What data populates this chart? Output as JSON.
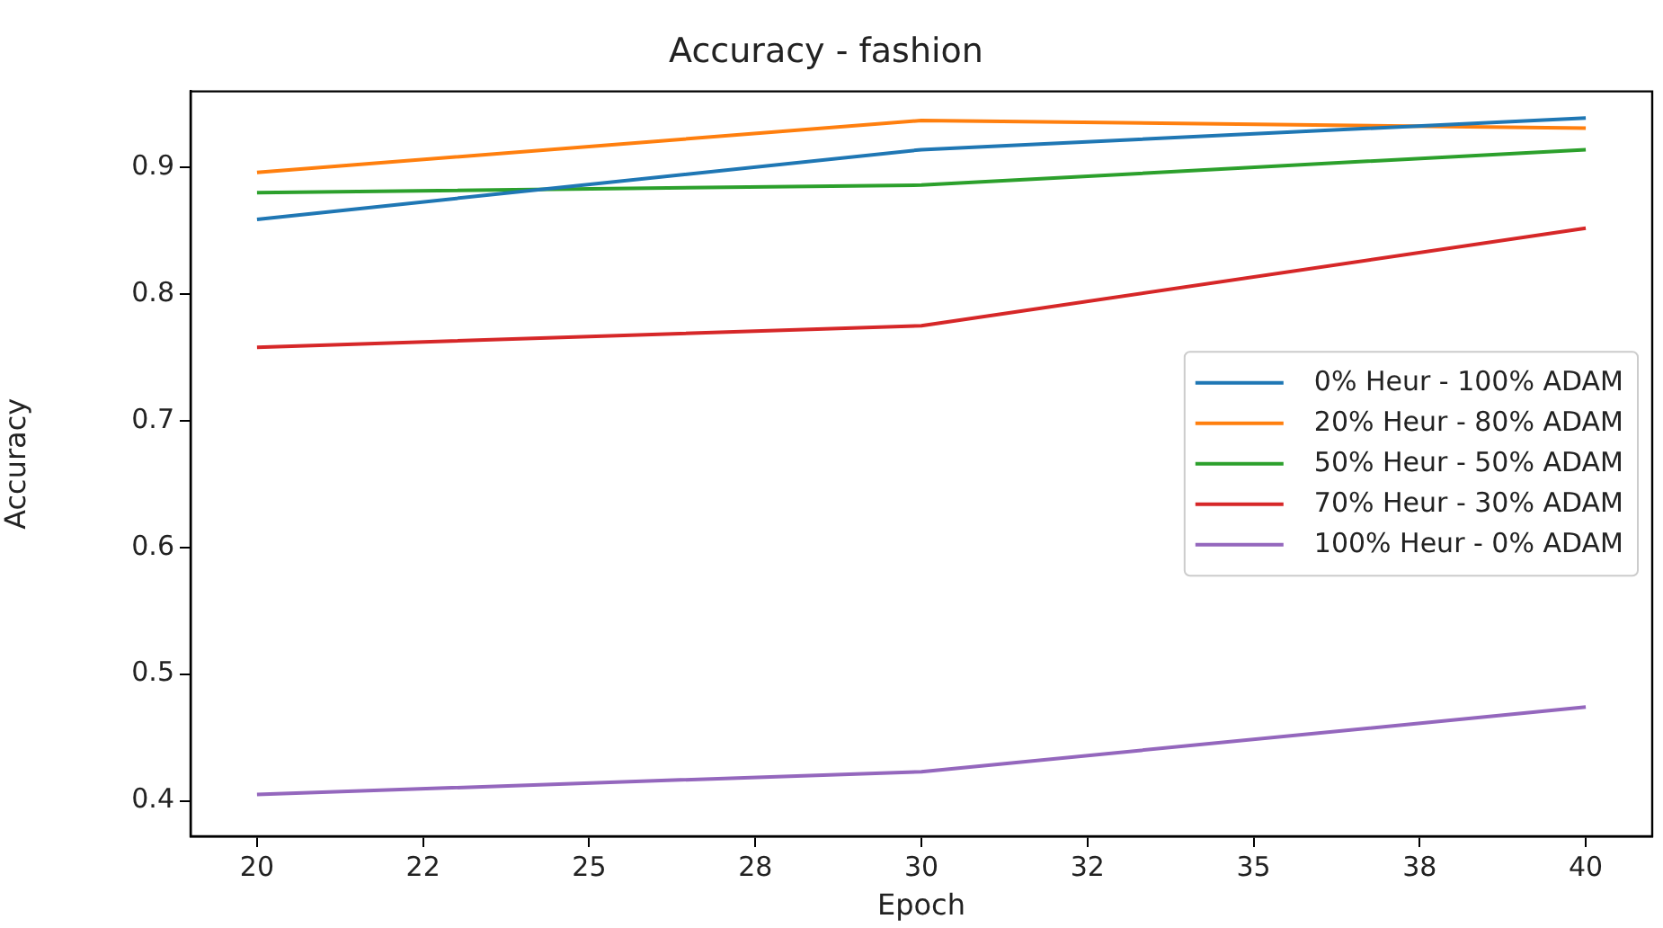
{
  "chart_data": {
    "type": "line",
    "title": "Accuracy - fashion",
    "xlabel": "Epoch",
    "ylabel": "Accuracy",
    "x": [
      20,
      30,
      40
    ],
    "series": [
      {
        "name": "0% Heur - 100% ADAM",
        "color": "#1f77b4",
        "values": [
          0.859,
          0.914,
          0.939
        ]
      },
      {
        "name": "20% Heur - 80% ADAM",
        "color": "#ff7f0e",
        "values": [
          0.896,
          0.937,
          0.931
        ]
      },
      {
        "name": "50% Heur - 50% ADAM",
        "color": "#2ca02c",
        "values": [
          0.88,
          0.886,
          0.914
        ]
      },
      {
        "name": "70% Heur - 30% ADAM",
        "color": "#d62728",
        "values": [
          0.758,
          0.775,
          0.852
        ]
      },
      {
        "name": "100% Heur - 0% ADAM",
        "color": "#9467bd",
        "values": [
          0.405,
          0.423,
          0.474
        ]
      }
    ],
    "xlim": [
      19,
      41
    ],
    "xticks": [
      20,
      {
        "value": 22.5,
        "label": "22"
      },
      25,
      {
        "value": 27.5,
        "label": "28"
      },
      30,
      {
        "value": 32.5,
        "label": "32"
      },
      35,
      {
        "value": 37.5,
        "label": "38"
      },
      40
    ],
    "ylim": [
      0.372,
      0.96
    ],
    "yticks": [
      0.4,
      0.5,
      0.6,
      0.7,
      0.8,
      0.9
    ],
    "grid": false,
    "legend": "right",
    "marker": "none",
    "line_style": "solid"
  }
}
